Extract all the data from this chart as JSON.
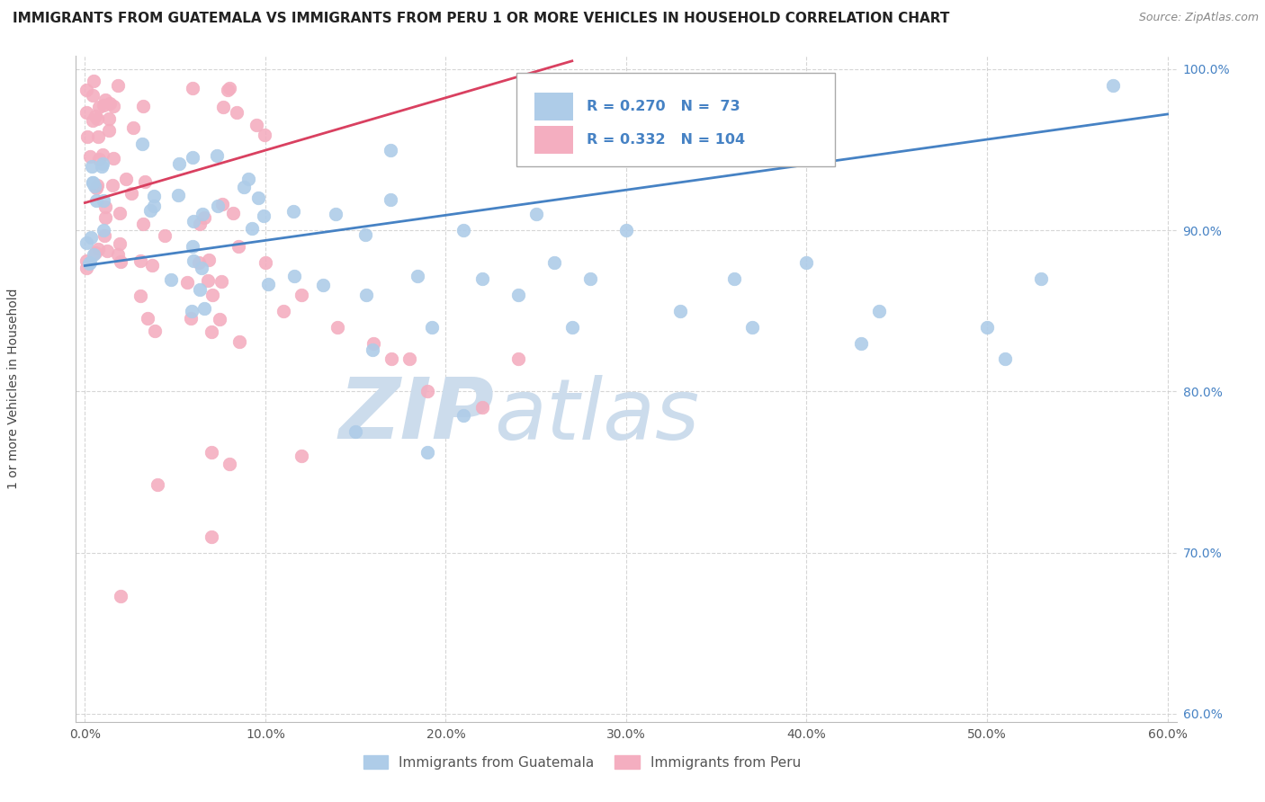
{
  "title": "IMMIGRANTS FROM GUATEMALA VS IMMIGRANTS FROM PERU 1 OR MORE VEHICLES IN HOUSEHOLD CORRELATION CHART",
  "source": "Source: ZipAtlas.com",
  "xlabel_blue": "Immigrants from Guatemala",
  "xlabel_pink": "Immigrants from Peru",
  "ylabel": "1 or more Vehicles in Household",
  "xlim": [
    -0.005,
    0.605
  ],
  "ylim": [
    0.595,
    1.008
  ],
  "xticks": [
    0.0,
    0.1,
    0.2,
    0.3,
    0.4,
    0.5,
    0.6
  ],
  "xticklabels": [
    "0.0%",
    "10.0%",
    "20.0%",
    "30.0%",
    "40.0%",
    "50.0%",
    "60.0%"
  ],
  "yticks": [
    0.6,
    0.7,
    0.8,
    0.9,
    1.0
  ],
  "yticklabels": [
    "60.0%",
    "70.0%",
    "80.0%",
    "90.0%",
    "100.0%"
  ],
  "R_blue": 0.27,
  "N_blue": 73,
  "R_pink": 0.332,
  "N_pink": 104,
  "blue_color": "#aecce8",
  "pink_color": "#f4aec0",
  "blue_line_color": "#4682c4",
  "pink_line_color": "#d94060",
  "watermark_zip": "ZIP",
  "watermark_atlas": "atlas",
  "watermark_color": "#ccdcec",
  "background_color": "#ffffff",
  "grid_color": "#cccccc",
  "title_fontsize": 11,
  "source_fontsize": 9,
  "blue_trendline_x0": 0.0,
  "blue_trendline_y0": 0.878,
  "blue_trendline_x1": 0.6,
  "blue_trendline_y1": 0.972,
  "pink_trendline_x0": 0.0,
  "pink_trendline_y0": 0.917,
  "pink_trendline_x1": 0.27,
  "pink_trendline_y1": 1.005
}
